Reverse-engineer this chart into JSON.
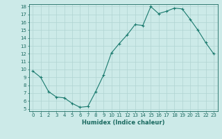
{
  "x": [
    0,
    1,
    2,
    3,
    4,
    5,
    6,
    7,
    8,
    9,
    10,
    11,
    12,
    13,
    14,
    15,
    16,
    17,
    18,
    19,
    20,
    21,
    22,
    23
  ],
  "y": [
    9.8,
    9.0,
    7.2,
    6.5,
    6.4,
    5.7,
    5.2,
    5.3,
    7.2,
    9.3,
    12.1,
    13.3,
    14.4,
    15.7,
    15.6,
    18.0,
    17.1,
    17.4,
    17.8,
    17.7,
    16.4,
    15.0,
    13.4,
    12.0
  ],
  "line_color": "#1a7a6e",
  "bg_color": "#cceae8",
  "grid_color": "#b0d4d2",
  "xlabel": "Humidex (Indice chaleur)",
  "ylim_min": 5,
  "ylim_max": 18,
  "xlim_min": 0,
  "xlim_max": 23,
  "yticks": [
    5,
    6,
    7,
    8,
    9,
    10,
    11,
    12,
    13,
    14,
    15,
    16,
    17,
    18
  ],
  "xticks": [
    0,
    1,
    2,
    3,
    4,
    5,
    6,
    7,
    8,
    9,
    10,
    11,
    12,
    13,
    14,
    15,
    16,
    17,
    18,
    19,
    20,
    21,
    22,
    23
  ],
  "tick_color": "#1a6a60",
  "label_fontsize": 6.0,
  "tick_fontsize": 5.0,
  "marker": "+",
  "marker_size": 3.5,
  "line_width": 0.8
}
